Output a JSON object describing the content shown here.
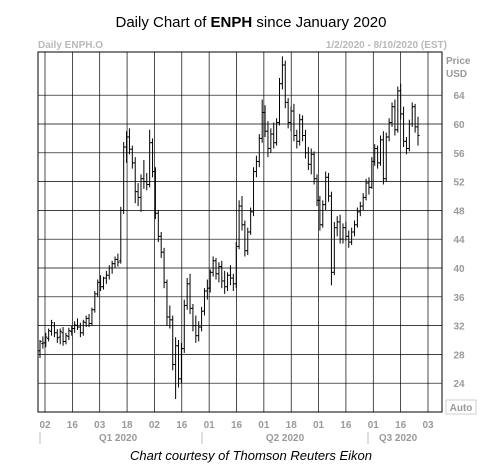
{
  "title": {
    "prefix": "Daily Chart of ",
    "ticker": "ENPH",
    "suffix": " since January 2020"
  },
  "header": {
    "left": "Daily ENPH.O",
    "right": "1/2/2020 - 8/10/2020 (EST)",
    "price_label_1": "Price",
    "price_label_2": "USD",
    "auto_label": "Auto"
  },
  "credit": "Chart courtesy of Thomson Reuters Eikon",
  "colors": {
    "bars": "#000000",
    "grid": "#000000",
    "labels": "#9a9a9a"
  },
  "chart_data": {
    "type": "ohlc",
    "ylim": [
      20,
      70
    ],
    "y_ticks": [
      24,
      28,
      32,
      36,
      40,
      44,
      48,
      52,
      56,
      60,
      64
    ],
    "x_tick_labels": [
      "02",
      "16",
      "03",
      "18",
      "02",
      "16",
      "01",
      "16",
      "01",
      "18",
      "01",
      "16",
      "01",
      "16",
      "03"
    ],
    "quarter_labels": [
      "Q1 2020",
      "Q2 2020",
      "Q3 2020"
    ],
    "series": [
      {
        "values": [
          [
            28.5,
            30.0,
            27.5,
            29.8
          ],
          [
            29.5,
            30.5,
            28.8,
            29.6
          ],
          [
            29.6,
            31.0,
            29.0,
            30.4
          ],
          [
            30.2,
            31.6,
            29.8,
            31.3
          ],
          [
            31.2,
            32.8,
            30.6,
            32.4
          ],
          [
            32.0,
            32.5,
            30.4,
            31.0
          ],
          [
            31.0,
            31.5,
            29.6,
            30.3
          ],
          [
            30.4,
            31.6,
            29.4,
            31.2
          ],
          [
            31.0,
            31.8,
            29.2,
            29.8
          ],
          [
            29.8,
            31.0,
            29.4,
            30.6
          ],
          [
            30.5,
            31.7,
            30.0,
            31.3
          ],
          [
            31.2,
            32.0,
            30.6,
            31.6
          ],
          [
            31.6,
            32.6,
            31.0,
            32.1
          ],
          [
            32.0,
            33.0,
            31.4,
            31.8
          ],
          [
            31.8,
            32.4,
            30.4,
            31.0
          ],
          [
            31.0,
            32.8,
            30.6,
            32.5
          ],
          [
            32.4,
            33.4,
            31.8,
            33.0
          ],
          [
            33.0,
            33.6,
            31.8,
            32.3
          ],
          [
            32.3,
            34.5,
            32.0,
            34.2
          ],
          [
            34.2,
            36.8,
            33.8,
            36.4
          ],
          [
            36.4,
            38.4,
            36.0,
            38.0
          ],
          [
            38.0,
            39.0,
            36.8,
            37.4
          ],
          [
            37.4,
            38.8,
            37.0,
            38.6
          ],
          [
            38.6,
            39.6,
            37.8,
            39.0
          ],
          [
            39.0,
            40.4,
            38.4,
            40.0
          ],
          [
            40.0,
            41.0,
            39.2,
            40.6
          ],
          [
            40.6,
            41.6,
            40.0,
            41.2
          ],
          [
            41.2,
            42.0,
            40.2,
            40.8
          ],
          [
            41.0,
            48.5,
            40.6,
            48.0
          ],
          [
            48.0,
            57.5,
            47.5,
            56.8
          ],
          [
            56.8,
            59.0,
            54.6,
            58.2
          ],
          [
            58.2,
            59.4,
            55.8,
            56.5
          ],
          [
            56.5,
            57.0,
            53.8,
            54.6
          ],
          [
            54.6,
            55.4,
            49.0,
            50.6
          ],
          [
            50.6,
            51.8,
            48.6,
            49.8
          ],
          [
            49.8,
            53.0,
            47.8,
            52.4
          ],
          [
            52.4,
            55.0,
            51.0,
            52.0
          ],
          [
            52.0,
            53.2,
            50.8,
            51.6
          ],
          [
            51.6,
            59.2,
            51.2,
            57.4
          ],
          [
            57.4,
            58.0,
            52.6,
            53.4
          ],
          [
            53.4,
            54.0,
            46.8,
            47.6
          ],
          [
            47.6,
            48.0,
            43.6,
            44.4
          ],
          [
            44.4,
            45.0,
            41.4,
            42.2
          ],
          [
            42.2,
            42.8,
            37.2,
            38.0
          ],
          [
            38.0,
            38.4,
            32.0,
            33.2
          ],
          [
            33.2,
            34.8,
            31.6,
            32.8
          ],
          [
            32.8,
            33.4,
            25.8,
            26.6
          ],
          [
            26.6,
            30.4,
            21.8,
            29.2
          ],
          [
            29.2,
            30.0,
            23.4,
            24.6
          ],
          [
            24.6,
            29.6,
            24.0,
            28.8
          ],
          [
            28.8,
            35.6,
            28.2,
            34.8
          ],
          [
            34.8,
            38.6,
            34.2,
            37.8
          ],
          [
            37.8,
            39.2,
            33.6,
            34.4
          ],
          [
            34.4,
            35.0,
            31.2,
            32.0
          ],
          [
            32.0,
            33.4,
            29.6,
            30.6
          ],
          [
            30.6,
            32.6,
            29.8,
            31.8
          ],
          [
            31.8,
            34.6,
            31.2,
            34.0
          ],
          [
            34.0,
            37.2,
            33.4,
            36.8
          ],
          [
            36.8,
            38.4,
            35.6,
            37.2
          ],
          [
            37.2,
            39.8,
            36.6,
            39.4
          ],
          [
            39.4,
            41.6,
            38.8,
            41.0
          ],
          [
            41.0,
            41.4,
            38.4,
            39.2
          ],
          [
            39.2,
            40.8,
            38.0,
            40.2
          ],
          [
            40.2,
            41.0,
            37.2,
            38.2
          ],
          [
            38.2,
            39.6,
            36.4,
            37.4
          ],
          [
            37.4,
            39.4,
            36.8,
            39.0
          ],
          [
            39.0,
            40.4,
            37.6,
            38.6
          ],
          [
            38.6,
            39.2,
            36.8,
            37.8
          ],
          [
            37.8,
            43.6,
            37.2,
            43.0
          ],
          [
            43.0,
            49.4,
            42.6,
            48.6
          ],
          [
            48.6,
            50.0,
            45.2,
            46.0
          ],
          [
            46.0,
            46.6,
            41.6,
            42.4
          ],
          [
            42.4,
            45.6,
            41.8,
            45.0
          ],
          [
            45.0,
            48.4,
            44.6,
            47.8
          ],
          [
            47.8,
            54.0,
            47.2,
            53.4
          ],
          [
            53.4,
            55.6,
            52.6,
            54.8
          ],
          [
            54.8,
            58.6,
            54.0,
            58.0
          ],
          [
            58.0,
            63.4,
            57.4,
            61.6
          ],
          [
            61.6,
            62.6,
            58.2,
            59.0
          ],
          [
            59.0,
            60.4,
            55.4,
            56.6
          ],
          [
            56.6,
            59.4,
            56.0,
            58.6
          ],
          [
            58.6,
            60.2,
            56.6,
            57.4
          ],
          [
            57.4,
            60.8,
            57.0,
            60.2
          ],
          [
            60.2,
            66.4,
            59.8,
            65.6
          ],
          [
            65.6,
            69.4,
            64.8,
            68.2
          ],
          [
            68.2,
            68.8,
            62.2,
            63.0
          ],
          [
            63.0,
            63.6,
            59.4,
            60.2
          ],
          [
            60.2,
            62.4,
            59.0,
            61.8
          ],
          [
            61.8,
            62.8,
            57.6,
            58.4
          ],
          [
            58.4,
            59.2,
            56.6,
            57.6
          ],
          [
            57.6,
            61.4,
            57.0,
            60.6
          ],
          [
            60.6,
            61.2,
            57.6,
            58.4
          ],
          [
            58.4,
            59.2,
            55.2,
            56.0
          ],
          [
            56.0,
            56.8,
            53.6,
            54.4
          ],
          [
            54.4,
            56.6,
            53.0,
            55.8
          ],
          [
            55.8,
            56.2,
            51.6,
            52.4
          ],
          [
            52.4,
            53.0,
            48.6,
            49.4
          ],
          [
            49.4,
            50.0,
            45.2,
            46.0
          ],
          [
            46.0,
            49.4,
            45.6,
            48.8
          ],
          [
            48.8,
            53.4,
            48.0,
            52.6
          ],
          [
            52.6,
            53.2,
            49.2,
            50.0
          ],
          [
            50.0,
            50.6,
            37.6,
            39.4
          ],
          [
            39.4,
            46.4,
            39.0,
            45.6
          ],
          [
            45.6,
            47.2,
            44.4,
            46.4
          ],
          [
            46.4,
            47.4,
            43.4,
            44.0
          ],
          [
            44.0,
            46.2,
            43.4,
            45.6
          ],
          [
            45.6,
            46.4,
            43.8,
            44.4
          ],
          [
            44.4,
            45.2,
            42.8,
            43.6
          ],
          [
            43.6,
            45.6,
            43.2,
            45.0
          ],
          [
            45.0,
            46.6,
            44.4,
            46.0
          ],
          [
            46.0,
            48.4,
            45.6,
            47.8
          ],
          [
            47.8,
            49.2,
            47.2,
            48.6
          ],
          [
            48.6,
            50.4,
            48.0,
            49.8
          ],
          [
            49.8,
            52.4,
            49.4,
            51.8
          ],
          [
            51.8,
            52.6,
            50.2,
            51.2
          ],
          [
            51.2,
            55.4,
            51.0,
            54.8
          ],
          [
            54.8,
            57.2,
            54.2,
            56.6
          ],
          [
            56.6,
            57.0,
            53.8,
            54.6
          ],
          [
            54.6,
            58.4,
            54.2,
            57.8
          ],
          [
            57.8,
            59.0,
            51.6,
            52.4
          ],
          [
            52.4,
            58.8,
            52.0,
            58.2
          ],
          [
            58.2,
            60.8,
            57.6,
            60.2
          ],
          [
            60.2,
            63.0,
            59.6,
            62.4
          ],
          [
            62.4,
            63.4,
            58.4,
            59.2
          ],
          [
            59.2,
            65.2,
            58.8,
            64.6
          ],
          [
            64.6,
            65.6,
            60.6,
            61.4
          ],
          [
            61.4,
            62.4,
            56.8,
            57.6
          ],
          [
            57.6,
            58.2,
            55.8,
            56.6
          ],
          [
            56.6,
            60.6,
            56.2,
            60.0
          ],
          [
            60.0,
            63.0,
            59.6,
            62.4
          ],
          [
            62.4,
            62.8,
            58.8,
            59.6
          ],
          [
            59.6,
            61.0,
            57.0,
            58.4
          ]
        ]
      }
    ]
  }
}
